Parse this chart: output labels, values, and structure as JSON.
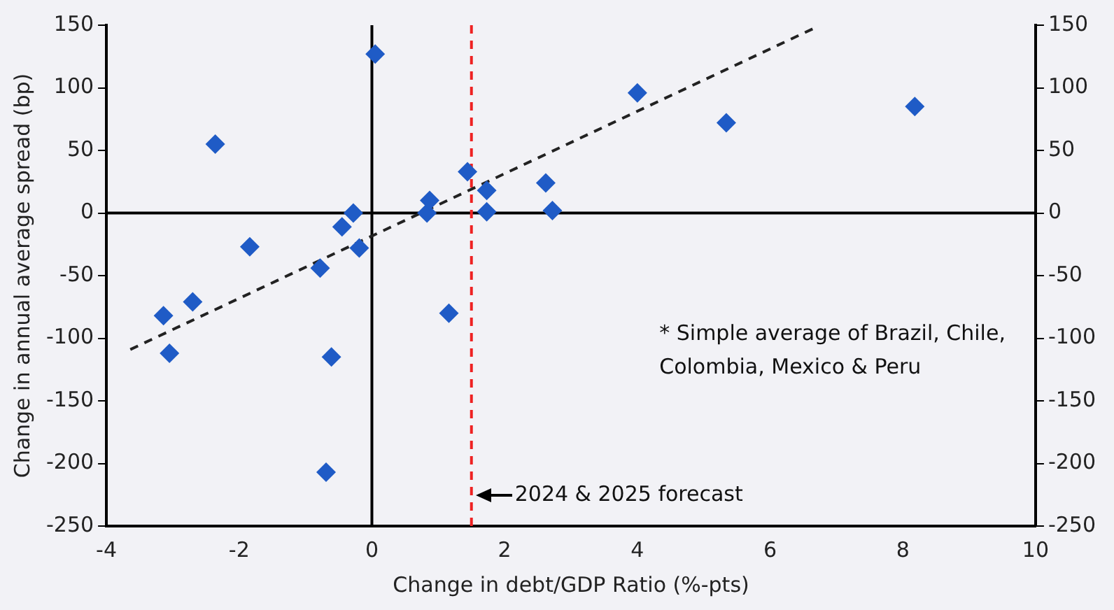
{
  "chart_data": {
    "type": "scatter",
    "xlabel": "Change in debt/GDP Ratio (%-pts)",
    "ylabel": "Change in annual average spread (bp)",
    "xlim": [
      -4,
      10
    ],
    "xticks": [
      -4,
      -2,
      0,
      2,
      4,
      6,
      8,
      10
    ],
    "ylim": [
      -250,
      150
    ],
    "yticks": [
      -250,
      -200,
      -150,
      -100,
      -50,
      0,
      50,
      100,
      150
    ],
    "y2lim": [
      -250,
      150
    ],
    "y2ticks": [
      -250,
      -200,
      -150,
      -100,
      -50,
      0,
      50,
      100,
      150
    ],
    "grid": false,
    "legend": false,
    "marker": "diamond",
    "series": [
      {
        "type": "scatter",
        "color": "#1f5bc6",
        "x": [
          0.05,
          -2.36,
          -1.84,
          -0.78,
          -0.45,
          -0.28,
          -0.19,
          -3.14,
          -2.7,
          -3.05,
          -0.61,
          -0.69,
          1.16,
          0.83,
          0.87,
          1.44,
          1.73,
          1.73,
          2.62,
          2.72,
          4.0,
          5.34,
          8.18
        ],
        "values": [
          127,
          55,
          -27,
          -44,
          -11,
          0,
          -28,
          -82,
          -71,
          -112,
          -115,
          -207,
          -80,
          0,
          10,
          33,
          18,
          1,
          24,
          2,
          96,
          72,
          85
        ]
      },
      {
        "type": "line",
        "color": "#222222",
        "line_style": "dashed",
        "marker": "none",
        "x": [
          -3.64,
          6.64
        ],
        "values": [
          -109,
          147
        ]
      }
    ],
    "ref_lines": [
      {
        "axis": "x",
        "value": 0,
        "color": "#000000",
        "line_style": "solid"
      },
      {
        "axis": "y",
        "value": 0,
        "color": "#000000",
        "line_style": "solid"
      },
      {
        "axis": "x",
        "value": 1.5,
        "color": "#ee2222",
        "line_style": "dashed",
        "label": "2024 & 2025 forecast"
      }
    ],
    "annotations": [
      "* Simple average of Brazil, Chile, Colombia, Mexico & Peru"
    ]
  }
}
